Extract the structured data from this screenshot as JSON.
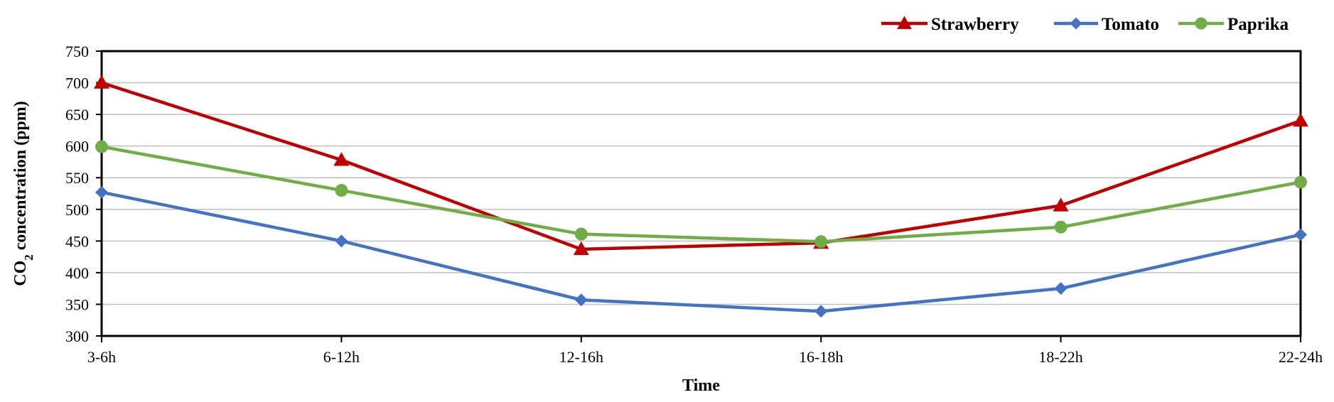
{
  "chart_data": {
    "type": "line",
    "categories": [
      "3-6h",
      "6-12h",
      "12-16h",
      "16-18h",
      "18-22h",
      "22-24h"
    ],
    "series": [
      {
        "name": "Strawberry",
        "values": [
          700,
          578,
          437,
          447,
          506,
          640
        ],
        "color": "#c00000",
        "marker": "triangle"
      },
      {
        "name": "Tomato",
        "values": [
          527,
          450,
          357,
          339,
          375,
          460
        ],
        "color": "#4472c4",
        "marker": "diamond"
      },
      {
        "name": "Paprika",
        "values": [
          599,
          530,
          461,
          449,
          472,
          543
        ],
        "color": "#70ad47",
        "marker": "circle"
      }
    ],
    "title": "",
    "xlabel": "Time",
    "ylabel_main": "CO",
    "ylabel_sub": "2",
    "ylabel_rest": " concentration (ppm)",
    "ylim": [
      300,
      750
    ],
    "yticks": [
      300,
      350,
      400,
      450,
      500,
      550,
      600,
      650,
      700,
      750
    ],
    "grid": true,
    "legend_position": "top-right"
  }
}
